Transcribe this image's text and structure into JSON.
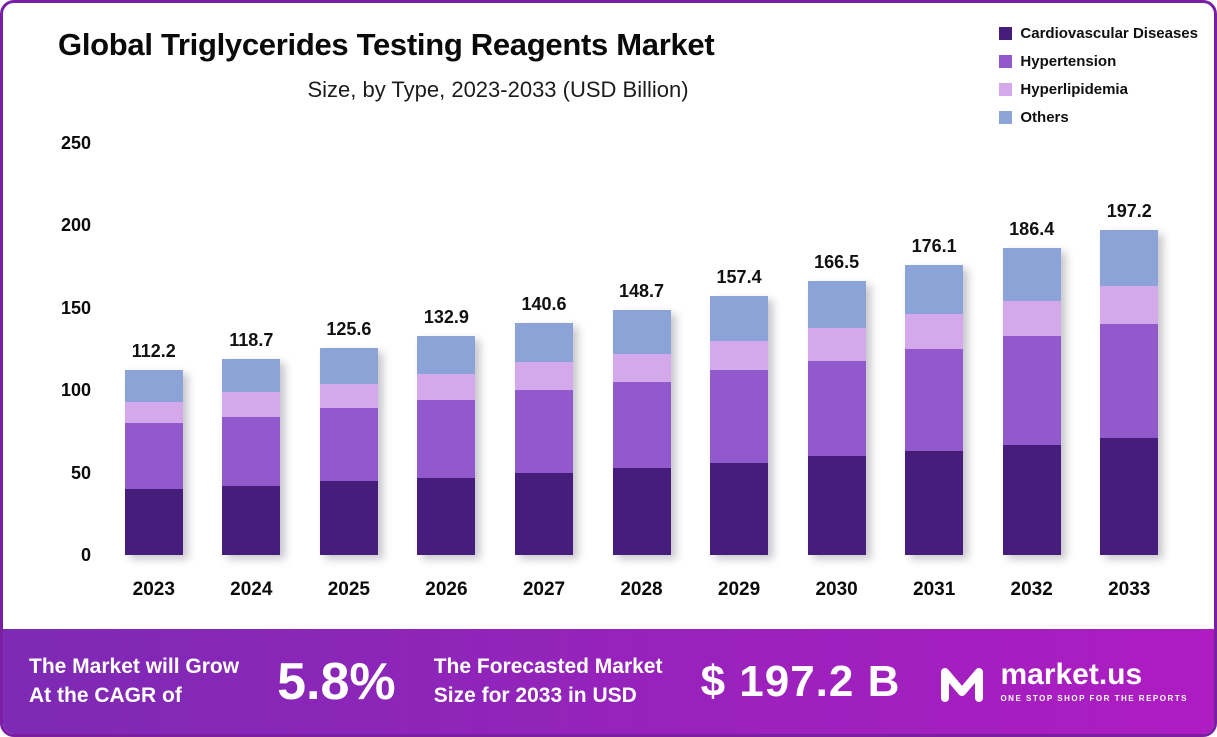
{
  "chart_data": {
    "type": "bar",
    "stacked": true,
    "title": "Global Triglycerides Testing Reagents Market",
    "subtitle": "Size, by Type, 2023-2033 (USD Billion)",
    "categories": [
      "2023",
      "2024",
      "2025",
      "2026",
      "2027",
      "2028",
      "2029",
      "2030",
      "2031",
      "2032",
      "2033"
    ],
    "series": [
      {
        "name": "Cardiovascular Diseases",
        "color": "#471d7c",
        "values": [
          40,
          42,
          45,
          47,
          50,
          53,
          56,
          60,
          63,
          67,
          71
        ]
      },
      {
        "name": "Hypertension",
        "color": "#9259cc",
        "values": [
          40,
          42,
          44,
          47,
          50,
          52,
          56,
          58,
          62,
          66,
          69
        ]
      },
      {
        "name": "Hyperlipidemia",
        "color": "#d4a9ec",
        "values": [
          13,
          15,
          15,
          16,
          17,
          17,
          18,
          20,
          21,
          21,
          23
        ]
      },
      {
        "name": "Others",
        "color": "#8ca3d8",
        "values": [
          19.2,
          19.7,
          21.6,
          22.9,
          23.6,
          26.7,
          27.4,
          28.5,
          30.1,
          32.4,
          34.2
        ]
      }
    ],
    "totals": [
      112.2,
      118.7,
      125.6,
      132.9,
      140.6,
      148.7,
      157.4,
      166.5,
      176.1,
      186.4,
      197.2
    ],
    "ylim": [
      0,
      250
    ],
    "yticks": [
      0,
      50,
      100,
      150,
      200,
      250
    ],
    "grid": false,
    "legend_position": "top-right"
  },
  "banner": {
    "left_line1": "The Market will Grow",
    "left_line2": "At the CAGR of",
    "cagr": "5.8%",
    "mid_line1": "The Forecasted Market",
    "mid_line2": "Size for 2033 in USD",
    "value": "$ 197.2 B",
    "brand": "market.us",
    "tagline": "ONE STOP SHOP FOR THE REPORTS"
  },
  "colors": {
    "frame_border": "#7b1fa2",
    "banner_from": "#7d2ab4",
    "banner_to": "#ae1cc2",
    "text": "#0d0d0d"
  }
}
